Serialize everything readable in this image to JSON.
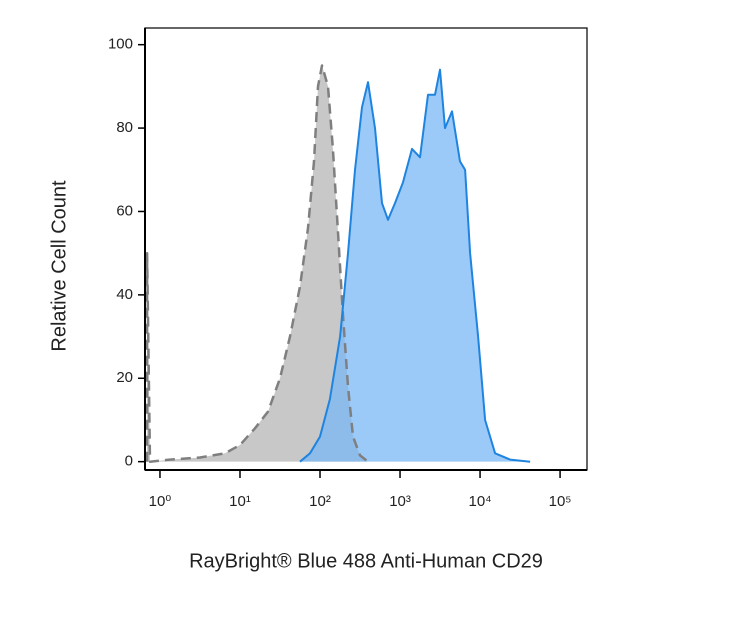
{
  "chart_data": {
    "type": "histogram-overlay",
    "ylabel": "Relative Cell Count",
    "xlabel": "RayBright® Blue 488 Anti-Human CD29",
    "xscale": "log",
    "xlim": [
      0.65,
      217000
    ],
    "ylim": [
      -2,
      104
    ],
    "xticks": [
      {
        "value": 1,
        "label": "10⁰"
      },
      {
        "value": 10,
        "label": "10¹"
      },
      {
        "value": 100,
        "label": "10²"
      },
      {
        "value": 1000,
        "label": "10³"
      },
      {
        "value": 10000,
        "label": "10⁴"
      },
      {
        "value": 100000,
        "label": "10⁵"
      }
    ],
    "yticks": [
      0,
      20,
      40,
      60,
      80,
      100
    ],
    "series": [
      {
        "color": "#c8c8c8",
        "line_color": "#7f7f7f",
        "linestyle": "dashed",
        "x": [
          0.69,
          0.69,
          0.75,
          1.33,
          3.16,
          6.5,
          10,
          15.4,
          22.4,
          31.6,
          42.2,
          56.2,
          70.8,
          84.1,
          94.4,
          106,
          126,
          145,
          168,
          194,
          224,
          258,
          316,
          398
        ],
        "values": [
          0,
          50,
          0,
          0.5,
          1,
          2,
          4,
          8,
          12,
          20,
          30,
          42,
          56,
          72,
          90,
          95,
          90,
          75,
          55,
          35,
          18,
          6,
          1.5,
          0
        ]
      },
      {
        "color": "#7ab8f5",
        "line_color": "#1f84e0",
        "linestyle": "solid",
        "x": [
          56.2,
          75,
          100,
          133,
          178,
          224,
          274,
          335,
          398,
          487,
          596,
          708,
          866,
          1090,
          1413,
          1778,
          2239,
          2738,
          3162,
          3652,
          4467,
          5623,
          6494,
          7499,
          9441,
          11548,
          15400,
          23714,
          42170
        ],
        "values": [
          0,
          2,
          6,
          15,
          30,
          50,
          70,
          85,
          91,
          80,
          62,
          58,
          62,
          67,
          75,
          73,
          88,
          88,
          94,
          80,
          84,
          72,
          70,
          50,
          30,
          10,
          2,
          0.5,
          0
        ]
      }
    ]
  }
}
